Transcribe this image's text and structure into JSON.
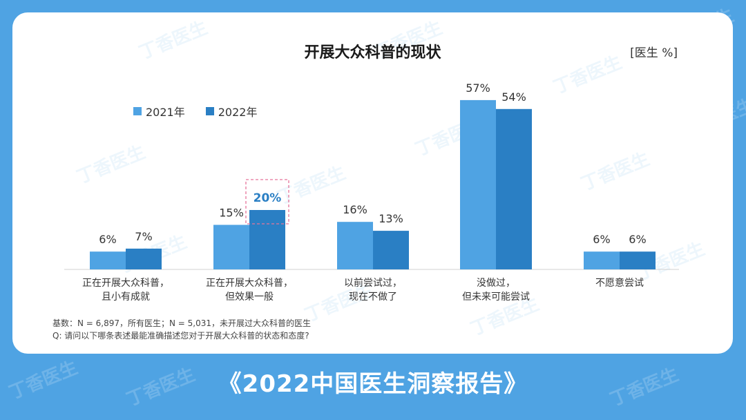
{
  "watermark": "丁香医生",
  "report_title": "《2022中国医生洞察报告》",
  "chart_data": {
    "type": "bar",
    "title": "开展大众科普的现状",
    "unit": "[医生 %]",
    "categories": [
      [
        "正在开展大众科普，",
        "且小有成就"
      ],
      [
        "正在开展大众科普，",
        "但效果一般"
      ],
      [
        "以前尝试过，",
        "现在不做了"
      ],
      [
        "没做过，",
        "但未来可能尝试"
      ],
      [
        "不愿意尝试"
      ]
    ],
    "series": [
      {
        "name": "2021年",
        "values": [
          6,
          15,
          16,
          57,
          6
        ],
        "labels": [
          "6%",
          "15%",
          "16%",
          "57%",
          "6%"
        ],
        "color": "#4fa3e3"
      },
      {
        "name": "2022年",
        "values": [
          7,
          20,
          13,
          54,
          6
        ],
        "labels": [
          "7%",
          "20%",
          "13%",
          "54%",
          "6%"
        ],
        "color": "#2a7fc4"
      }
    ],
    "highlight": {
      "series": 1,
      "index": 1,
      "color": "#2a7fc4",
      "box_color": "#e6739a"
    },
    "ylim": [
      0,
      60
    ],
    "grid": false,
    "legend": "top-left"
  },
  "footnotes": [
    "基数：N = 6,897，所有医生；N = 5,031，未开展过大众科普的医生",
    "Q: 请问以下哪条表述最能准确描述您对于开展大众科普的状态和态度?"
  ]
}
